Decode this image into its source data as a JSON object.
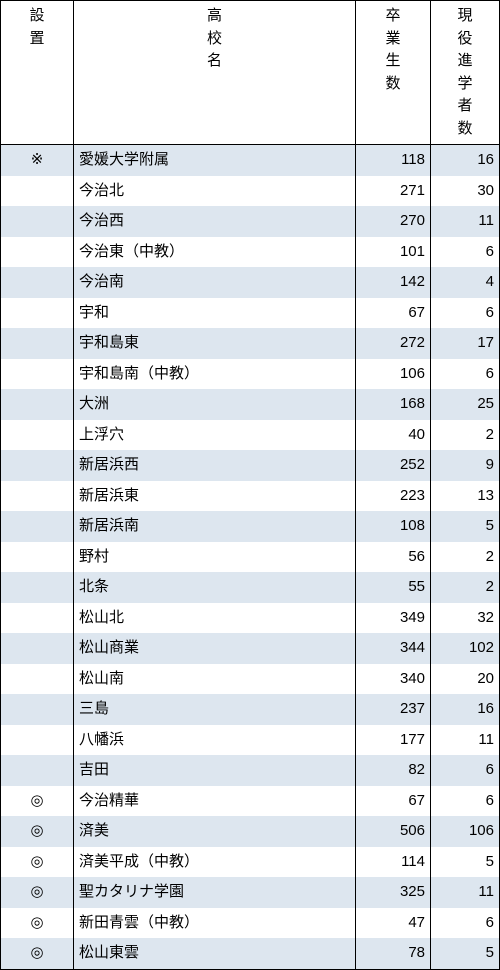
{
  "colors": {
    "row_odd_bg": "#dde6ef",
    "row_even_bg": "#ffffff",
    "border": "#000000"
  },
  "columns": [
    {
      "key": "setchi",
      "label": "設\n置"
    },
    {
      "key": "name",
      "label": "高\n校\n名"
    },
    {
      "key": "grad",
      "label": "卒\n業\n生\n数"
    },
    {
      "key": "adv",
      "label": "現\n役\n進\n学\n者\n数"
    }
  ],
  "rows": [
    {
      "setchi": "※",
      "name": "愛媛大学附属",
      "grad": 118,
      "adv": 16
    },
    {
      "setchi": "",
      "name": "今治北",
      "grad": 271,
      "adv": 30
    },
    {
      "setchi": "",
      "name": "今治西",
      "grad": 270,
      "adv": 11
    },
    {
      "setchi": "",
      "name": "今治東（中教）",
      "grad": 101,
      "adv": 6
    },
    {
      "setchi": "",
      "name": "今治南",
      "grad": 142,
      "adv": 4
    },
    {
      "setchi": "",
      "name": "宇和",
      "grad": 67,
      "adv": 6
    },
    {
      "setchi": "",
      "name": "宇和島東",
      "grad": 272,
      "adv": 17
    },
    {
      "setchi": "",
      "name": "宇和島南（中教）",
      "grad": 106,
      "adv": 6
    },
    {
      "setchi": "",
      "name": "大洲",
      "grad": 168,
      "adv": 25
    },
    {
      "setchi": "",
      "name": "上浮穴",
      "grad": 40,
      "adv": 2
    },
    {
      "setchi": "",
      "name": "新居浜西",
      "grad": 252,
      "adv": 9
    },
    {
      "setchi": "",
      "name": "新居浜東",
      "grad": 223,
      "adv": 13
    },
    {
      "setchi": "",
      "name": "新居浜南",
      "grad": 108,
      "adv": 5
    },
    {
      "setchi": "",
      "name": "野村",
      "grad": 56,
      "adv": 2
    },
    {
      "setchi": "",
      "name": "北条",
      "grad": 55,
      "adv": 2
    },
    {
      "setchi": "",
      "name": "松山北",
      "grad": 349,
      "adv": 32
    },
    {
      "setchi": "",
      "name": "松山商業",
      "grad": 344,
      "adv": 102
    },
    {
      "setchi": "",
      "name": "松山南",
      "grad": 340,
      "adv": 20
    },
    {
      "setchi": "",
      "name": "三島",
      "grad": 237,
      "adv": 16
    },
    {
      "setchi": "",
      "name": "八幡浜",
      "grad": 177,
      "adv": 11
    },
    {
      "setchi": "",
      "name": "吉田",
      "grad": 82,
      "adv": 6
    },
    {
      "setchi": "◎",
      "name": "今治精華",
      "grad": 67,
      "adv": 6
    },
    {
      "setchi": "◎",
      "name": "済美",
      "grad": 506,
      "adv": 106
    },
    {
      "setchi": "◎",
      "name": "済美平成（中教）",
      "grad": 114,
      "adv": 5
    },
    {
      "setchi": "◎",
      "name": "聖カタリナ学園",
      "grad": 325,
      "adv": 11
    },
    {
      "setchi": "◎",
      "name": "新田青雲（中教）",
      "grad": 47,
      "adv": 6
    },
    {
      "setchi": "◎",
      "name": "松山東雲",
      "grad": 78,
      "adv": 5
    }
  ]
}
